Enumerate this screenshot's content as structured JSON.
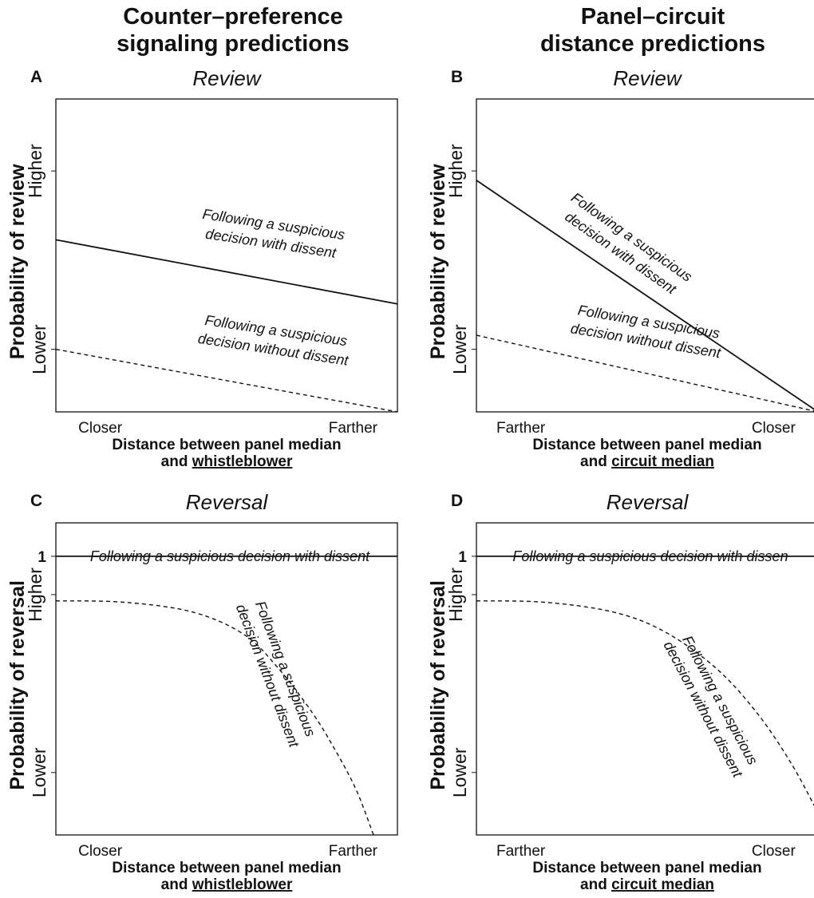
{
  "column_titles": {
    "left": [
      "Counter–preference",
      "signaling predictions"
    ],
    "right": [
      "Panel–circuit",
      "distance predictions"
    ]
  },
  "colors": {
    "line": "#111111",
    "background": "#ffffff"
  },
  "chart_data": [
    {
      "panel": "A",
      "title": "Review",
      "type": "line",
      "ylabel": "Probability of review",
      "y_ticks": [
        "Lower",
        "Higher"
      ],
      "xlabel": [
        "Distance between panel median",
        "and "
      ],
      "xlabel_underlined": "whistleblower",
      "x_ticks": [
        "Closer",
        "Farther"
      ],
      "xlim": [
        0,
        1
      ],
      "ylim": [
        0,
        1
      ],
      "series": [
        {
          "name": "Following a suspicious decision with dissent",
          "style": "solid",
          "x": [
            0,
            1
          ],
          "y": [
            0.55,
            0.345
          ],
          "label_lines": [
            "Following a suspicious",
            "decision with dissent"
          ]
        },
        {
          "name": "Following a suspicious decision without dissent",
          "style": "dashed",
          "x": [
            0,
            1
          ],
          "y": [
            0.2,
            0.0
          ],
          "label_lines": [
            "Following a suspicious",
            "decision without dissent"
          ]
        }
      ]
    },
    {
      "panel": "B",
      "title": "Review",
      "type": "line",
      "ylabel": "Probability of review",
      "y_ticks": [
        "Lower",
        "Higher"
      ],
      "xlabel": [
        "Distance between panel median",
        "and "
      ],
      "xlabel_underlined": "circuit median",
      "x_ticks": [
        "Farther",
        "Closer"
      ],
      "xlim": [
        0,
        1
      ],
      "ylim": [
        0,
        1
      ],
      "series": [
        {
          "name": "Following a suspicious decision with dissent",
          "style": "solid",
          "x": [
            0,
            1
          ],
          "y": [
            0.74,
            0.0
          ],
          "label_lines": [
            "Following a suspicious",
            "decision with dissent"
          ]
        },
        {
          "name": "Following a suspicious decision without dissent",
          "style": "dashed",
          "x": [
            0,
            1
          ],
          "y": [
            0.245,
            0.0
          ],
          "label_lines": [
            "Following a suspicious",
            "decision without dissent"
          ]
        }
      ]
    },
    {
      "panel": "C",
      "title": "Reversal",
      "type": "line",
      "ylabel": "Probability of reversal",
      "y_ticks": [
        "Lower",
        "Higher"
      ],
      "y_top_tick": "1",
      "xlabel": [
        "Distance between panel median",
        "and "
      ],
      "xlabel_underlined": "whistleblower",
      "x_ticks": [
        "Closer",
        "Farther"
      ],
      "xlim": [
        0,
        1
      ],
      "ylim": [
        0,
        1.12
      ],
      "series": [
        {
          "name": "Following a suspicious decision with dissent",
          "style": "solid",
          "x": [
            0,
            1
          ],
          "y": [
            1,
            1
          ],
          "label_lines": [
            "Following a suspicious decision with dissent"
          ]
        },
        {
          "name": "Following a suspicious decision without dissent",
          "style": "dashed",
          "x": [
            0,
            0.2,
            0.4,
            0.55,
            0.65,
            0.75,
            0.82,
            0.88,
            0.93
          ],
          "y": [
            0.84,
            0.835,
            0.8,
            0.72,
            0.6,
            0.44,
            0.3,
            0.16,
            0.0
          ],
          "label_lines": [
            "Following a suspicious",
            "decision without dissent"
          ]
        }
      ]
    },
    {
      "panel": "D",
      "title": "Reversal",
      "type": "line",
      "ylabel": "Probability of reversal",
      "y_ticks": [
        "Lower",
        "Higher"
      ],
      "y_top_tick": "1",
      "xlabel": [
        "Distance between panel median",
        "and "
      ],
      "xlabel_underlined": "circuit median",
      "x_ticks": [
        "Farther",
        "Closer"
      ],
      "xlim": [
        0,
        1
      ],
      "ylim": [
        0,
        1.12
      ],
      "series": [
        {
          "name": "Following a suspicious decision with dissent",
          "style": "solid",
          "x": [
            0,
            1
          ],
          "y": [
            1,
            1
          ],
          "label_lines": [
            "Following a suspicious decision with dissen"
          ]
        },
        {
          "name": "Following a suspicious decision without dissent",
          "style": "dashed",
          "x": [
            0,
            0.2,
            0.4,
            0.55,
            0.7,
            0.82,
            0.92,
            1.0
          ],
          "y": [
            0.84,
            0.835,
            0.8,
            0.73,
            0.6,
            0.44,
            0.26,
            0.08
          ],
          "label_lines": [
            "Following a suspicious",
            "decision without dissent"
          ]
        }
      ]
    }
  ]
}
